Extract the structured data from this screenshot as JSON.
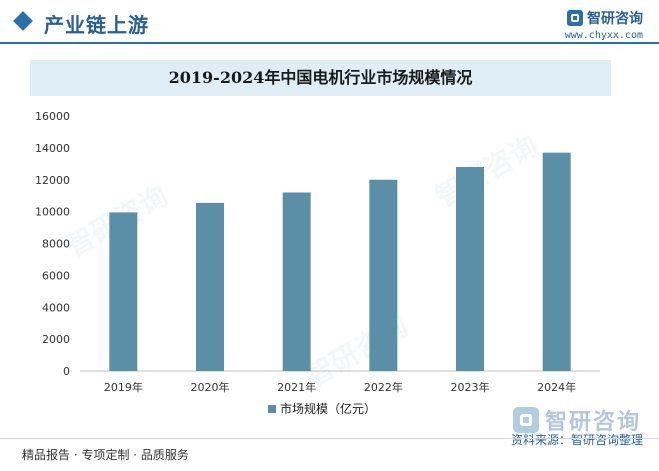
{
  "header": {
    "section_title": "产业链上游",
    "brand_name": "智研咨询",
    "brand_url": "www.chyxx.com"
  },
  "chart_data": {
    "type": "bar",
    "title": "2019-2024年中国电机行业市场规模情况",
    "categories": [
      "2019年",
      "2020年",
      "2021年",
      "2022年",
      "2023年",
      "2024年"
    ],
    "series": [
      {
        "name": "市场规模（亿元）",
        "values": [
          9950,
          10550,
          11200,
          12000,
          12800,
          13700
        ]
      }
    ],
    "ylim": [
      0,
      16000
    ],
    "yticks": [
      0,
      2000,
      4000,
      6000,
      8000,
      10000,
      12000,
      14000,
      16000
    ],
    "grid": false,
    "legend_position": "bottom",
    "bar_color": "#5b8fa8"
  },
  "footer": {
    "left_text": "精品报告 · 专项定制 · 品质服务",
    "brand_name": "智研咨询",
    "source": "资料来源：智研咨询整理"
  },
  "colors": {
    "accent": "#2a6fa8",
    "title_band": "#dfeef6"
  }
}
